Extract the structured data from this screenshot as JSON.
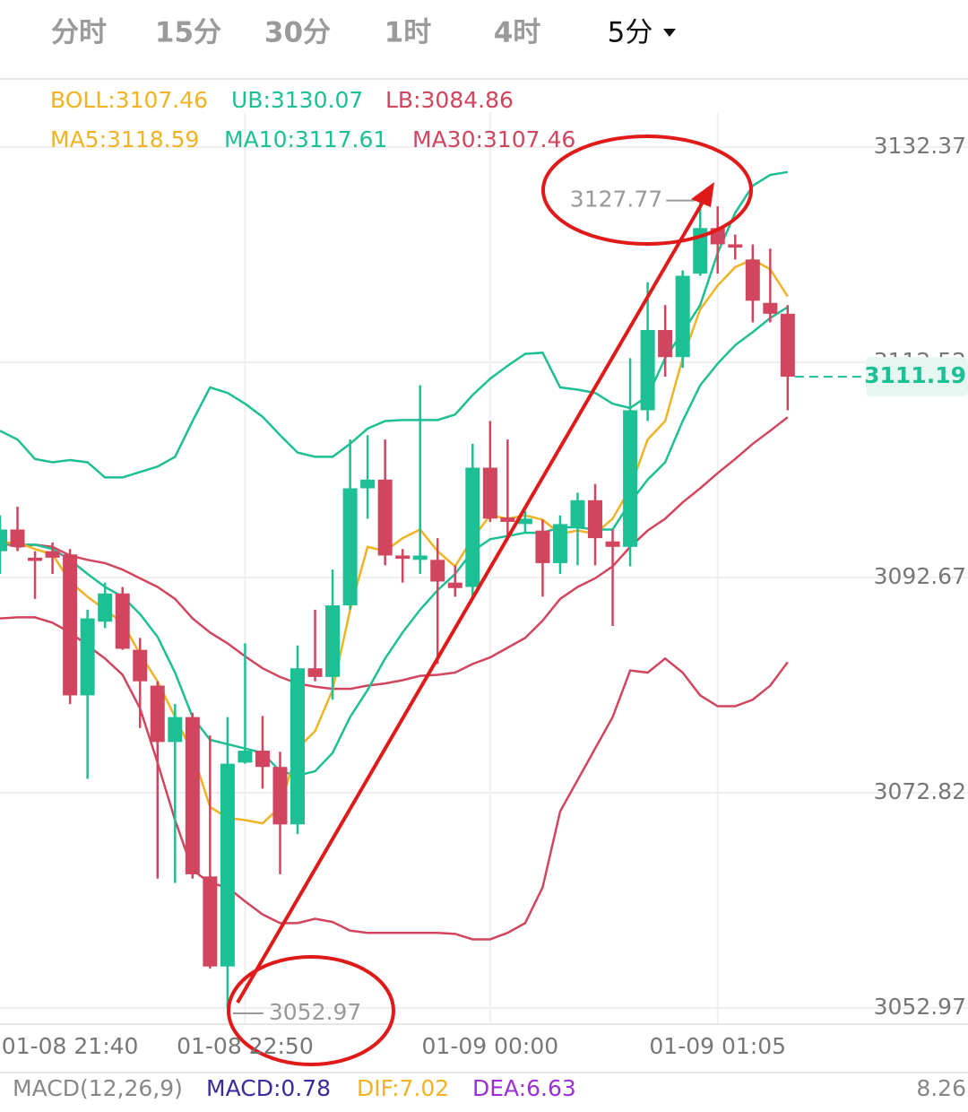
{
  "tabs": {
    "items": [
      "分时",
      "15分",
      "30分",
      "1时",
      "4时",
      "5分"
    ],
    "selected": 5
  },
  "chart_data": {
    "type": "candlestick",
    "legend": [
      [
        {
          "text": "BOLL:3107.46",
          "color": "#f0b323"
        },
        {
          "text": "UB:3130.07",
          "color": "#1dbf94"
        },
        {
          "text": "LB:3084.86",
          "color": "#d2455f"
        }
      ],
      [
        {
          "text": "MA5:3118.59",
          "color": "#f0b323"
        },
        {
          "text": "MA10:3117.61",
          "color": "#1dbf94"
        },
        {
          "text": "MA30:3107.46",
          "color": "#d2455f"
        }
      ]
    ],
    "categories": [
      null,
      null,
      null,
      null,
      "01-08 21:40",
      null,
      null,
      null,
      null,
      null,
      null,
      null,
      null,
      null,
      "01-08 22:50",
      null,
      null,
      null,
      null,
      null,
      null,
      null,
      null,
      null,
      null,
      null,
      null,
      null,
      "01-09 00:00",
      null,
      null,
      null,
      null,
      null,
      null,
      null,
      null,
      null,
      null,
      null,
      null,
      "01-09 01:05",
      null,
      null,
      null,
      null
    ],
    "open": [
      3095.1,
      3097.1,
      3094.5,
      3095.1,
      3094.8,
      3081.8,
      3088.6,
      3091.2,
      3086.0,
      3082.7,
      3077.5,
      3079.8,
      3065.1,
      3056.8,
      3075.6,
      3076.7,
      3075.2,
      3069.9,
      3084.3,
      3083.5,
      3090.1,
      3100.9,
      3101.7,
      3094.7,
      3094.3,
      3094.3,
      3092.2,
      3091.8,
      3102.8,
      3098.2,
      3097.6,
      3097.0,
      3094.0,
      3097.3,
      3099.8,
      3096.0,
      3095.5,
      3108.1,
      3115.5,
      3113.0,
      3120.7,
      3124.9,
      3123.4,
      3122.0,
      3118.0,
      3117.0
    ],
    "high": [
      3098.4,
      3099.2,
      3095.1,
      3095.9,
      3095.3,
      3089.7,
      3092.2,
      3091.8,
      3087.1,
      3083.1,
      3081.0,
      3080.2,
      3078.1,
      3079.8,
      3086.6,
      3079.9,
      3076.6,
      3086.4,
      3089.7,
      3093.4,
      3105.4,
      3105.8,
      3105.4,
      3095.3,
      3110.4,
      3096.3,
      3093.8,
      3105.0,
      3107.1,
      3105.4,
      3098.8,
      3098.0,
      3098.4,
      3100.5,
      3101.3,
      3097.1,
      3112.9,
      3119.9,
      3117.8,
      3121.0,
      3127.77,
      3126.9,
      3124.3,
      3123.4,
      3123.0,
      3117.8
    ],
    "low": [
      3093.0,
      3095.1,
      3090.7,
      3093.0,
      3081.0,
      3074.1,
      3088.0,
      3086.0,
      3078.8,
      3064.9,
      3064.5,
      3064.9,
      3056.6,
      3052.97,
      3075.5,
      3073.2,
      3065.3,
      3069.0,
      3083.1,
      3081.4,
      3089.7,
      3098.1,
      3093.8,
      3092.2,
      3093.0,
      3084.7,
      3090.9,
      3090.9,
      3097.8,
      3096.3,
      3096.7,
      3090.9,
      3093.0,
      3093.8,
      3093.8,
      3088.2,
      3093.7,
      3107.1,
      3111.2,
      3112.0,
      3120.5,
      3120.7,
      3122.0,
      3116.2,
      3116.2,
      3108.1
    ],
    "close": [
      3097.1,
      3095.5,
      3094.2,
      3094.5,
      3081.8,
      3088.9,
      3091.2,
      3086.1,
      3083.1,
      3077.5,
      3079.8,
      3065.3,
      3056.8,
      3075.5,
      3076.7,
      3075.2,
      3069.9,
      3084.3,
      3083.5,
      3090.1,
      3100.9,
      3101.7,
      3094.7,
      3094.4,
      3094.7,
      3092.3,
      3091.7,
      3102.8,
      3098.1,
      3097.8,
      3098.1,
      3094.0,
      3097.6,
      3099.8,
      3096.3,
      3095.5,
      3108.1,
      3115.5,
      3113.0,
      3120.5,
      3124.9,
      3123.4,
      3123.1,
      3118.2,
      3117.0,
      3111.19
    ],
    "up_color": "#1dbf94",
    "down_color": "#d2455f",
    "series": [
      {
        "color": "#1dbf94",
        "values": [
          3106.2,
          3105.4,
          3103.6,
          3103.3,
          3103.5,
          3103.3,
          3101.9,
          3101.9,
          3102.4,
          3102.9,
          3103.8,
          3107.1,
          3110.2,
          3109.7,
          3108.7,
          3107.5,
          3105.8,
          3104.2,
          3103.8,
          3103.8,
          3105.0,
          3106.4,
          3107.1,
          3107.2,
          3107.2,
          3107.2,
          3107.7,
          3109.5,
          3111.0,
          3112.2,
          3113.3,
          3113.4,
          3110.2,
          3110.0,
          3109.7,
          3108.7,
          3108.3,
          3109.4,
          3112.9,
          3115.3,
          3117.8,
          3122.6,
          3126.3,
          3128.8,
          3129.8,
          3130.07
        ]
      },
      {
        "color": "#d2455f",
        "values": [
          3088.9,
          3089.0,
          3089.0,
          3088.5,
          3087.6,
          3086.4,
          3085.2,
          3083.7,
          3080.6,
          3075.6,
          3070.3,
          3065.7,
          3064.5,
          3064.1,
          3062.8,
          3061.6,
          3060.8,
          3060.8,
          3061.2,
          3060.9,
          3060.1,
          3059.9,
          3059.9,
          3059.9,
          3059.9,
          3059.9,
          3059.8,
          3059.3,
          3059.3,
          3059.9,
          3060.8,
          3064.1,
          3071.1,
          3074.0,
          3076.9,
          3079.8,
          3084.1,
          3083.9,
          3085.2,
          3083.9,
          3081.8,
          3080.8,
          3080.8,
          3081.4,
          3082.7,
          3084.86
        ]
      },
      {
        "color": "#d2455f",
        "values": [
          3095.9,
          3095.5,
          3095.7,
          3095.5,
          3094.7,
          3094.3,
          3094.0,
          3093.4,
          3092.6,
          3091.8,
          3090.7,
          3088.9,
          3087.6,
          3086.6,
          3085.4,
          3084.3,
          3083.5,
          3082.9,
          3082.6,
          3082.4,
          3082.4,
          3082.7,
          3082.9,
          3083.2,
          3083.6,
          3083.7,
          3083.9,
          3084.7,
          3085.3,
          3086.2,
          3087.1,
          3088.7,
          3090.7,
          3091.8,
          3092.6,
          3093.7,
          3095.5,
          3097.0,
          3098.1,
          3099.6,
          3100.9,
          3102.3,
          3103.6,
          3105.0,
          3106.2,
          3107.46
        ]
      },
      {
        "color": "#1dbf94",
        "values": [
          3095.9,
          3095.7,
          3095.7,
          3095.3,
          3094.3,
          3093.0,
          3091.8,
          3090.9,
          3089.3,
          3087.2,
          3083.9,
          3079.8,
          3077.7,
          3077.3,
          3076.9,
          3076.5,
          3074.8,
          3074.4,
          3074.8,
          3076.5,
          3079.8,
          3082.3,
          3085.2,
          3087.6,
          3089.7,
          3091.5,
          3093.0,
          3095.1,
          3096.2,
          3096.5,
          3096.8,
          3096.8,
          3097.3,
          3097.3,
          3097.1,
          3097.1,
          3099.6,
          3101.7,
          3103.3,
          3107.1,
          3110.4,
          3112.4,
          3114.1,
          3115.3,
          3116.6,
          3117.61
        ]
      },
      {
        "color": "#f0b323",
        "values": [
          3095.9,
          3095.9,
          3095.3,
          3094.8,
          3092.3,
          3090.9,
          3089.7,
          3088.5,
          3085.6,
          3083.1,
          3079.8,
          3076.5,
          3071.5,
          3070.5,
          3070.3,
          3070.0,
          3071.5,
          3076.9,
          3078.5,
          3082.3,
          3089.7,
          3095.5,
          3095.1,
          3096.3,
          3097.1,
          3095.1,
          3093.7,
          3096.3,
          3098.4,
          3098.1,
          3098.4,
          3098.0,
          3096.7,
          3097.0,
          3096.7,
          3098.1,
          3100.9,
          3105.4,
          3107.1,
          3112.9,
          3117.4,
          3119.6,
          3121.3,
          3122.0,
          3121.1,
          3118.59
        ]
      }
    ],
    "ylim": [
      3052.97,
      3132.37
    ],
    "yticks": [
      3052.97,
      3072.82,
      3092.67,
      3112.52,
      3132.37
    ],
    "grid": true,
    "macd": {
      "title": "MACD(12,26,9)",
      "items": [
        {
          "text": "MACD:0.78",
          "color": "#3a2a9e"
        },
        {
          "text": "DIF:7.02",
          "color": "#f0b323"
        },
        {
          "text": "DEA:6.63",
          "color": "#9b30d9"
        }
      ],
      "axis_label": "8.26"
    }
  }
}
